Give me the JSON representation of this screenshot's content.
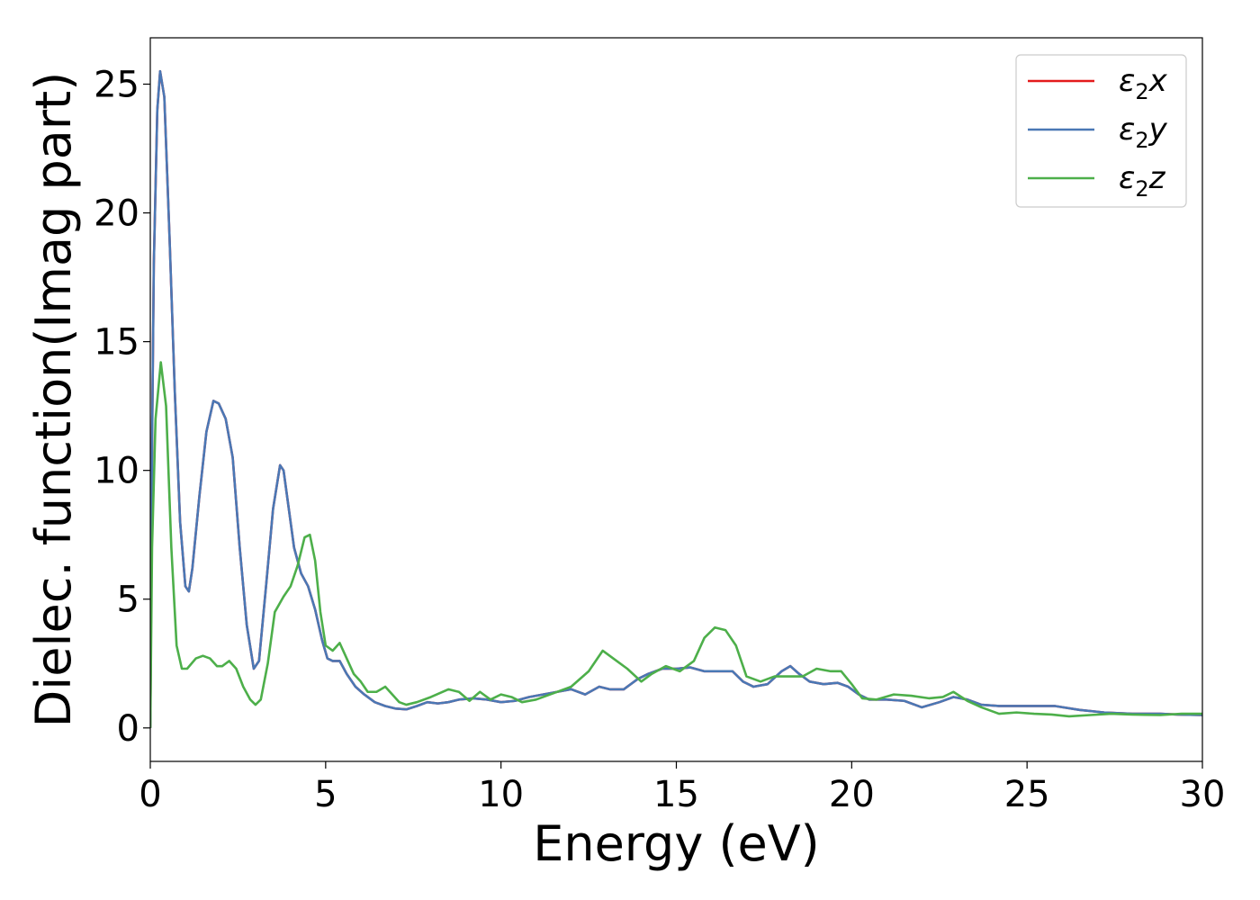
{
  "chart_data": {
    "type": "line",
    "title": "",
    "xlabel": "Energy (eV)",
    "ylabel": "Dielec. function(Imag part)",
    "xlim": [
      0,
      30
    ],
    "ylim": [
      -1.3,
      26.8
    ],
    "xticks": [
      0,
      5,
      10,
      15,
      20,
      25,
      30
    ],
    "yticks": [
      0,
      5,
      10,
      15,
      20,
      25
    ],
    "grid": false,
    "legend_position": "top-right",
    "series": [
      {
        "name": "ε2x",
        "legend_base": "ε",
        "legend_sub": "2",
        "legend_suffix": "x",
        "color": "#e41a1c",
        "points": [
          [
            0,
            0
          ],
          [
            0.05,
            11.0
          ],
          [
            0.1,
            18.0
          ],
          [
            0.2,
            24.0
          ],
          [
            0.28,
            25.5
          ],
          [
            0.4,
            24.5
          ],
          [
            0.55,
            19.0
          ],
          [
            0.7,
            13.0
          ],
          [
            0.85,
            8.0
          ],
          [
            1.0,
            5.5
          ],
          [
            1.1,
            5.3
          ],
          [
            1.2,
            6.2
          ],
          [
            1.4,
            9.0
          ],
          [
            1.6,
            11.5
          ],
          [
            1.8,
            12.7
          ],
          [
            1.95,
            12.6
          ],
          [
            2.15,
            12.0
          ],
          [
            2.35,
            10.5
          ],
          [
            2.55,
            7.0
          ],
          [
            2.75,
            4.0
          ],
          [
            2.95,
            2.3
          ],
          [
            3.1,
            2.6
          ],
          [
            3.3,
            5.5
          ],
          [
            3.5,
            8.5
          ],
          [
            3.7,
            10.2
          ],
          [
            3.8,
            10.0
          ],
          [
            3.95,
            8.5
          ],
          [
            4.1,
            7.0
          ],
          [
            4.3,
            6.0
          ],
          [
            4.5,
            5.5
          ],
          [
            4.7,
            4.6
          ],
          [
            4.9,
            3.4
          ],
          [
            5.05,
            2.7
          ],
          [
            5.2,
            2.6
          ],
          [
            5.4,
            2.6
          ],
          [
            5.6,
            2.1
          ],
          [
            5.85,
            1.6
          ],
          [
            6.1,
            1.3
          ],
          [
            6.4,
            1.0
          ],
          [
            6.7,
            0.85
          ],
          [
            7.0,
            0.75
          ],
          [
            7.3,
            0.72
          ],
          [
            7.6,
            0.85
          ],
          [
            7.9,
            1.0
          ],
          [
            8.2,
            0.95
          ],
          [
            8.5,
            1.0
          ],
          [
            8.8,
            1.1
          ],
          [
            9.2,
            1.15
          ],
          [
            9.6,
            1.1
          ],
          [
            10.0,
            1.0
          ],
          [
            10.4,
            1.05
          ],
          [
            10.8,
            1.2
          ],
          [
            11.2,
            1.3
          ],
          [
            11.6,
            1.4
          ],
          [
            12.0,
            1.5
          ],
          [
            12.4,
            1.3
          ],
          [
            12.8,
            1.6
          ],
          [
            13.1,
            1.5
          ],
          [
            13.5,
            1.5
          ],
          [
            13.9,
            1.9
          ],
          [
            14.2,
            2.1
          ],
          [
            14.6,
            2.3
          ],
          [
            15.0,
            2.3
          ],
          [
            15.4,
            2.35
          ],
          [
            15.8,
            2.2
          ],
          [
            16.2,
            2.2
          ],
          [
            16.6,
            2.2
          ],
          [
            16.9,
            1.8
          ],
          [
            17.2,
            1.6
          ],
          [
            17.6,
            1.7
          ],
          [
            18.0,
            2.2
          ],
          [
            18.25,
            2.4
          ],
          [
            18.5,
            2.1
          ],
          [
            18.8,
            1.8
          ],
          [
            19.2,
            1.7
          ],
          [
            19.6,
            1.75
          ],
          [
            19.9,
            1.6
          ],
          [
            20.2,
            1.3
          ],
          [
            20.5,
            1.1
          ],
          [
            21.0,
            1.1
          ],
          [
            21.5,
            1.05
          ],
          [
            22.0,
            0.8
          ],
          [
            22.5,
            1.0
          ],
          [
            22.9,
            1.2
          ],
          [
            23.3,
            1.1
          ],
          [
            23.7,
            0.9
          ],
          [
            24.2,
            0.85
          ],
          [
            25.0,
            0.85
          ],
          [
            25.8,
            0.85
          ],
          [
            26.5,
            0.7
          ],
          [
            27.2,
            0.6
          ],
          [
            28.0,
            0.55
          ],
          [
            28.8,
            0.55
          ],
          [
            29.3,
            0.52
          ],
          [
            30.0,
            0.5
          ]
        ]
      },
      {
        "name": "ε2y",
        "legend_base": "ε",
        "legend_sub": "2",
        "legend_suffix": "y",
        "color": "#4a78b5",
        "points": [
          [
            0,
            0
          ],
          [
            0.05,
            11.0
          ],
          [
            0.1,
            18.0
          ],
          [
            0.2,
            24.0
          ],
          [
            0.28,
            25.5
          ],
          [
            0.4,
            24.5
          ],
          [
            0.55,
            19.0
          ],
          [
            0.7,
            13.0
          ],
          [
            0.85,
            8.0
          ],
          [
            1.0,
            5.5
          ],
          [
            1.1,
            5.3
          ],
          [
            1.2,
            6.2
          ],
          [
            1.4,
            9.0
          ],
          [
            1.6,
            11.5
          ],
          [
            1.8,
            12.7
          ],
          [
            1.95,
            12.6
          ],
          [
            2.15,
            12.0
          ],
          [
            2.35,
            10.5
          ],
          [
            2.55,
            7.0
          ],
          [
            2.75,
            4.0
          ],
          [
            2.95,
            2.3
          ],
          [
            3.1,
            2.6
          ],
          [
            3.3,
            5.5
          ],
          [
            3.5,
            8.5
          ],
          [
            3.7,
            10.2
          ],
          [
            3.8,
            10.0
          ],
          [
            3.95,
            8.5
          ],
          [
            4.1,
            7.0
          ],
          [
            4.3,
            6.0
          ],
          [
            4.5,
            5.5
          ],
          [
            4.7,
            4.6
          ],
          [
            4.9,
            3.4
          ],
          [
            5.05,
            2.7
          ],
          [
            5.2,
            2.6
          ],
          [
            5.4,
            2.6
          ],
          [
            5.6,
            2.1
          ],
          [
            5.85,
            1.6
          ],
          [
            6.1,
            1.3
          ],
          [
            6.4,
            1.0
          ],
          [
            6.7,
            0.85
          ],
          [
            7.0,
            0.75
          ],
          [
            7.3,
            0.72
          ],
          [
            7.6,
            0.85
          ],
          [
            7.9,
            1.0
          ],
          [
            8.2,
            0.95
          ],
          [
            8.5,
            1.0
          ],
          [
            8.8,
            1.1
          ],
          [
            9.2,
            1.15
          ],
          [
            9.6,
            1.1
          ],
          [
            10.0,
            1.0
          ],
          [
            10.4,
            1.05
          ],
          [
            10.8,
            1.2
          ],
          [
            11.2,
            1.3
          ],
          [
            11.6,
            1.4
          ],
          [
            12.0,
            1.5
          ],
          [
            12.4,
            1.3
          ],
          [
            12.8,
            1.6
          ],
          [
            13.1,
            1.5
          ],
          [
            13.5,
            1.5
          ],
          [
            13.9,
            1.9
          ],
          [
            14.2,
            2.1
          ],
          [
            14.6,
            2.3
          ],
          [
            15.0,
            2.3
          ],
          [
            15.4,
            2.35
          ],
          [
            15.8,
            2.2
          ],
          [
            16.2,
            2.2
          ],
          [
            16.6,
            2.2
          ],
          [
            16.9,
            1.8
          ],
          [
            17.2,
            1.6
          ],
          [
            17.6,
            1.7
          ],
          [
            18.0,
            2.2
          ],
          [
            18.25,
            2.4
          ],
          [
            18.5,
            2.1
          ],
          [
            18.8,
            1.8
          ],
          [
            19.2,
            1.7
          ],
          [
            19.6,
            1.75
          ],
          [
            19.9,
            1.6
          ],
          [
            20.2,
            1.3
          ],
          [
            20.5,
            1.1
          ],
          [
            21.0,
            1.1
          ],
          [
            21.5,
            1.05
          ],
          [
            22.0,
            0.8
          ],
          [
            22.5,
            1.0
          ],
          [
            22.9,
            1.2
          ],
          [
            23.3,
            1.1
          ],
          [
            23.7,
            0.9
          ],
          [
            24.2,
            0.85
          ],
          [
            25.0,
            0.85
          ],
          [
            25.8,
            0.85
          ],
          [
            26.5,
            0.7
          ],
          [
            27.2,
            0.6
          ],
          [
            28.0,
            0.55
          ],
          [
            28.8,
            0.55
          ],
          [
            29.3,
            0.52
          ],
          [
            30.0,
            0.5
          ]
        ]
      },
      {
        "name": "ε2z",
        "legend_base": "ε",
        "legend_sub": "2",
        "legend_suffix": "z",
        "color": "#4daf4a",
        "points": [
          [
            0,
            0
          ],
          [
            0.05,
            7.0
          ],
          [
            0.15,
            12.0
          ],
          [
            0.3,
            14.2
          ],
          [
            0.45,
            12.5
          ],
          [
            0.6,
            7.0
          ],
          [
            0.75,
            3.2
          ],
          [
            0.9,
            2.3
          ],
          [
            1.05,
            2.3
          ],
          [
            1.3,
            2.7
          ],
          [
            1.5,
            2.8
          ],
          [
            1.7,
            2.7
          ],
          [
            1.9,
            2.4
          ],
          [
            2.05,
            2.4
          ],
          [
            2.25,
            2.6
          ],
          [
            2.45,
            2.3
          ],
          [
            2.65,
            1.6
          ],
          [
            2.85,
            1.1
          ],
          [
            3.0,
            0.9
          ],
          [
            3.15,
            1.1
          ],
          [
            3.35,
            2.5
          ],
          [
            3.55,
            4.5
          ],
          [
            3.8,
            5.1
          ],
          [
            4.0,
            5.5
          ],
          [
            4.2,
            6.3
          ],
          [
            4.4,
            7.4
          ],
          [
            4.55,
            7.5
          ],
          [
            4.7,
            6.5
          ],
          [
            4.85,
            4.5
          ],
          [
            5.0,
            3.2
          ],
          [
            5.2,
            3.0
          ],
          [
            5.4,
            3.3
          ],
          [
            5.6,
            2.7
          ],
          [
            5.8,
            2.1
          ],
          [
            6.0,
            1.8
          ],
          [
            6.2,
            1.4
          ],
          [
            6.45,
            1.4
          ],
          [
            6.7,
            1.6
          ],
          [
            6.9,
            1.3
          ],
          [
            7.1,
            1.0
          ],
          [
            7.3,
            0.9
          ],
          [
            7.6,
            1.0
          ],
          [
            8.0,
            1.2
          ],
          [
            8.5,
            1.5
          ],
          [
            8.8,
            1.4
          ],
          [
            9.1,
            1.05
          ],
          [
            9.4,
            1.4
          ],
          [
            9.7,
            1.1
          ],
          [
            10.0,
            1.3
          ],
          [
            10.3,
            1.2
          ],
          [
            10.6,
            1.0
          ],
          [
            11.0,
            1.1
          ],
          [
            11.5,
            1.35
          ],
          [
            12.0,
            1.6
          ],
          [
            12.5,
            2.2
          ],
          [
            12.9,
            3.0
          ],
          [
            13.2,
            2.7
          ],
          [
            13.6,
            2.3
          ],
          [
            14.0,
            1.8
          ],
          [
            14.3,
            2.1
          ],
          [
            14.7,
            2.4
          ],
          [
            15.1,
            2.2
          ],
          [
            15.5,
            2.6
          ],
          [
            15.8,
            3.5
          ],
          [
            16.1,
            3.9
          ],
          [
            16.4,
            3.8
          ],
          [
            16.7,
            3.2
          ],
          [
            17.0,
            2.0
          ],
          [
            17.4,
            1.8
          ],
          [
            17.8,
            2.0
          ],
          [
            18.2,
            2.0
          ],
          [
            18.6,
            2.0
          ],
          [
            19.0,
            2.3
          ],
          [
            19.4,
            2.2
          ],
          [
            19.7,
            2.2
          ],
          [
            20.0,
            1.7
          ],
          [
            20.3,
            1.15
          ],
          [
            20.7,
            1.1
          ],
          [
            21.2,
            1.3
          ],
          [
            21.7,
            1.25
          ],
          [
            22.2,
            1.15
          ],
          [
            22.6,
            1.2
          ],
          [
            22.9,
            1.4
          ],
          [
            23.3,
            1.05
          ],
          [
            23.7,
            0.8
          ],
          [
            24.2,
            0.55
          ],
          [
            24.7,
            0.6
          ],
          [
            25.2,
            0.55
          ],
          [
            25.7,
            0.52
          ],
          [
            26.2,
            0.45
          ],
          [
            26.8,
            0.5
          ],
          [
            27.4,
            0.55
          ],
          [
            28.0,
            0.52
          ],
          [
            28.8,
            0.5
          ],
          [
            29.4,
            0.55
          ],
          [
            30.0,
            0.55
          ]
        ]
      }
    ]
  }
}
